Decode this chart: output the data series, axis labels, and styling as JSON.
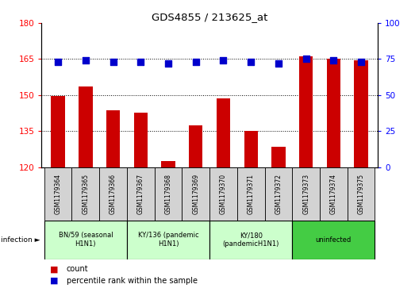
{
  "title": "GDS4855 / 213625_at",
  "samples": [
    "GSM1179364",
    "GSM1179365",
    "GSM1179366",
    "GSM1179367",
    "GSM1179368",
    "GSM1179369",
    "GSM1179370",
    "GSM1179371",
    "GSM1179372",
    "GSM1179373",
    "GSM1179374",
    "GSM1179375"
  ],
  "counts": [
    149.5,
    153.5,
    143.5,
    142.5,
    122.5,
    137.5,
    148.5,
    135.0,
    128.5,
    166.0,
    165.0,
    164.5
  ],
  "percentiles": [
    73,
    74,
    73,
    73,
    72,
    73,
    74,
    73,
    72,
    75,
    74,
    73
  ],
  "ylim_left": [
    120,
    180
  ],
  "ylim_right": [
    0,
    100
  ],
  "yticks_left": [
    120,
    135,
    150,
    165,
    180
  ],
  "yticks_right": [
    0,
    25,
    50,
    75,
    100
  ],
  "bar_color": "#cc0000",
  "dot_color": "#0000cc",
  "groups": [
    {
      "label": "BN/59 (seasonal\nH1N1)",
      "start": 0,
      "end": 3,
      "color": "#ccffcc"
    },
    {
      "label": "KY/136 (pandemic\nH1N1)",
      "start": 3,
      "end": 6,
      "color": "#ccffcc"
    },
    {
      "label": "KY/180\n(pandemicH1N1)",
      "start": 6,
      "end": 9,
      "color": "#ccffcc"
    },
    {
      "label": "uninfected",
      "start": 9,
      "end": 12,
      "color": "#44cc44"
    }
  ],
  "infection_label": "infection",
  "legend_count_label": "count",
  "legend_percentile_label": "percentile rank within the sample",
  "background_color": "#ffffff",
  "sample_box_color": "#d3d3d3",
  "bar_width": 0.5,
  "dot_size": 28
}
